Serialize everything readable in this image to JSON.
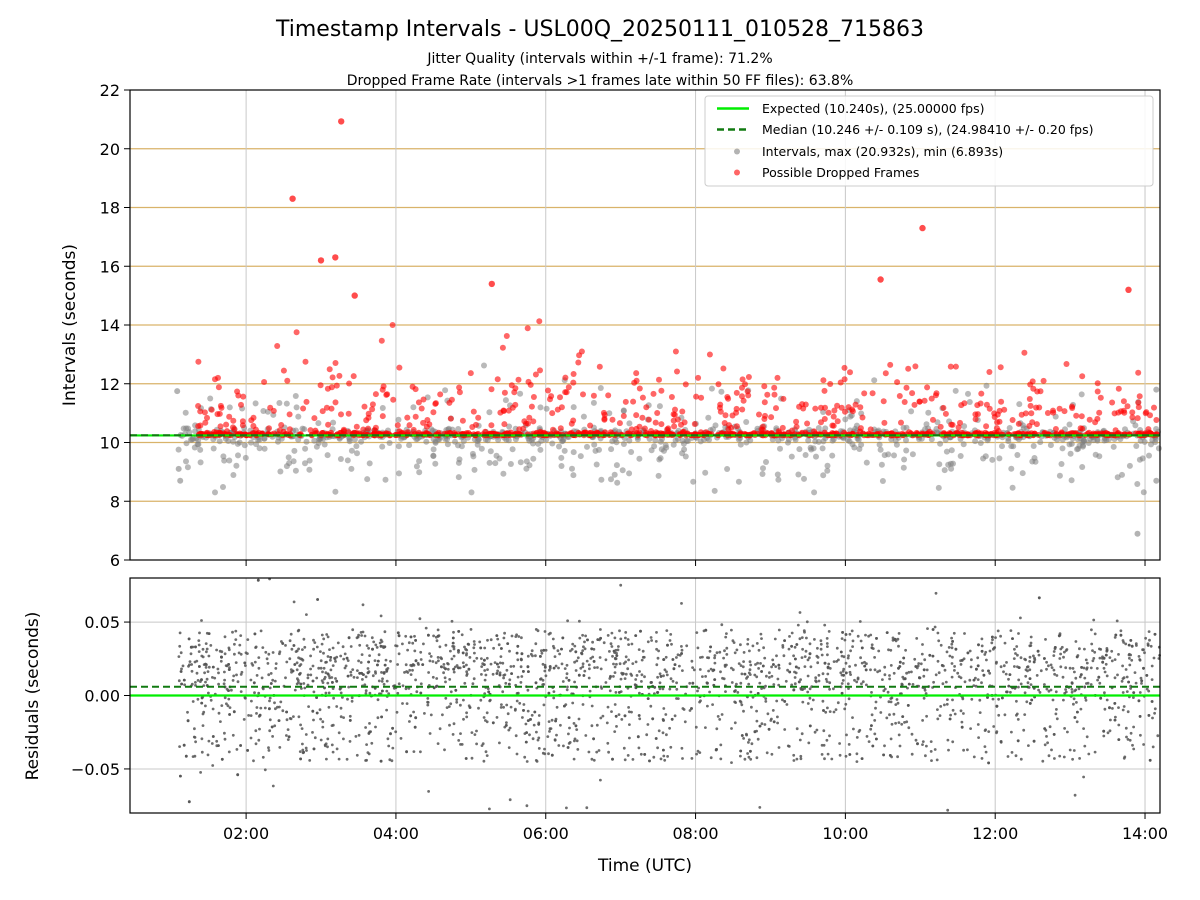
{
  "chart_data": {
    "type": "scatter",
    "title": "Timestamp Intervals - USL00Q_20250111_010528_715863",
    "subtitles": [
      "Jitter Quality (intervals within +/-1 frame): 71.2%",
      "Dropped Frame Rate (intervals >1 frames late within 50 FF files): 63.8%"
    ],
    "xlabel": "Time (UTC)",
    "x_ticks": [
      "02:00",
      "04:00",
      "06:00",
      "08:00",
      "10:00",
      "12:00",
      "14:00"
    ],
    "x_range_hours": [
      0.45,
      14.2
    ],
    "data_x_range_hours": [
      1.08,
      14.2
    ],
    "colors": {
      "expected": "#00ee00",
      "median": "#117a11",
      "intervals": "#808080",
      "dropped": "#ff0000",
      "residuals": "#555555",
      "hgrid_top": "#d9b36a",
      "vgrid": "#c8c8c8"
    },
    "top_panel": {
      "ylabel": "Intervals (seconds)",
      "ylim": [
        6,
        22
      ],
      "y_ticks": [
        "6",
        "8",
        "10",
        "12",
        "14",
        "16",
        "18",
        "20",
        "22"
      ],
      "expected": 10.24,
      "median": 10.246,
      "interval_extremes": {
        "max": 20.932,
        "min": 6.893
      },
      "dropped_outliers": [
        {
          "x": 2.62,
          "y": 18.3
        },
        {
          "x": 3.0,
          "y": 16.2
        },
        {
          "x": 3.19,
          "y": 16.3
        },
        {
          "x": 3.27,
          "y": 20.93
        },
        {
          "x": 3.45,
          "y": 15.0
        },
        {
          "x": 5.28,
          "y": 15.4
        },
        {
          "x": 10.47,
          "y": 15.55
        },
        {
          "x": 11.03,
          "y": 17.3
        },
        {
          "x": 13.78,
          "y": 15.2
        }
      ],
      "legend": [
        {
          "label": "Expected (10.240s), (25.00000 fps)",
          "kind": "solid-line"
        },
        {
          "label": "Median (10.246 +/- 0.109 s), (24.98410 +/- 0.20 fps)",
          "kind": "dashed-line"
        },
        {
          "label": "Intervals, max (20.932s), min (6.893s)",
          "kind": "gray-dot"
        },
        {
          "label": "Possible Dropped Frames",
          "kind": "red-dot"
        }
      ],
      "scatter_note": "dense clusters: gray intervals 8.3-13.2 s around 10.24 s; red dropped-frame points 10.24-14.7 s"
    },
    "bottom_panel": {
      "ylabel": "Residuals (seconds)",
      "ylim": [
        -0.08,
        0.08
      ],
      "y_ticks": [
        "−0.05",
        "0.00",
        "0.05"
      ],
      "expected": 0.0,
      "median": 0.006,
      "residual_spread": 0.045
    }
  }
}
